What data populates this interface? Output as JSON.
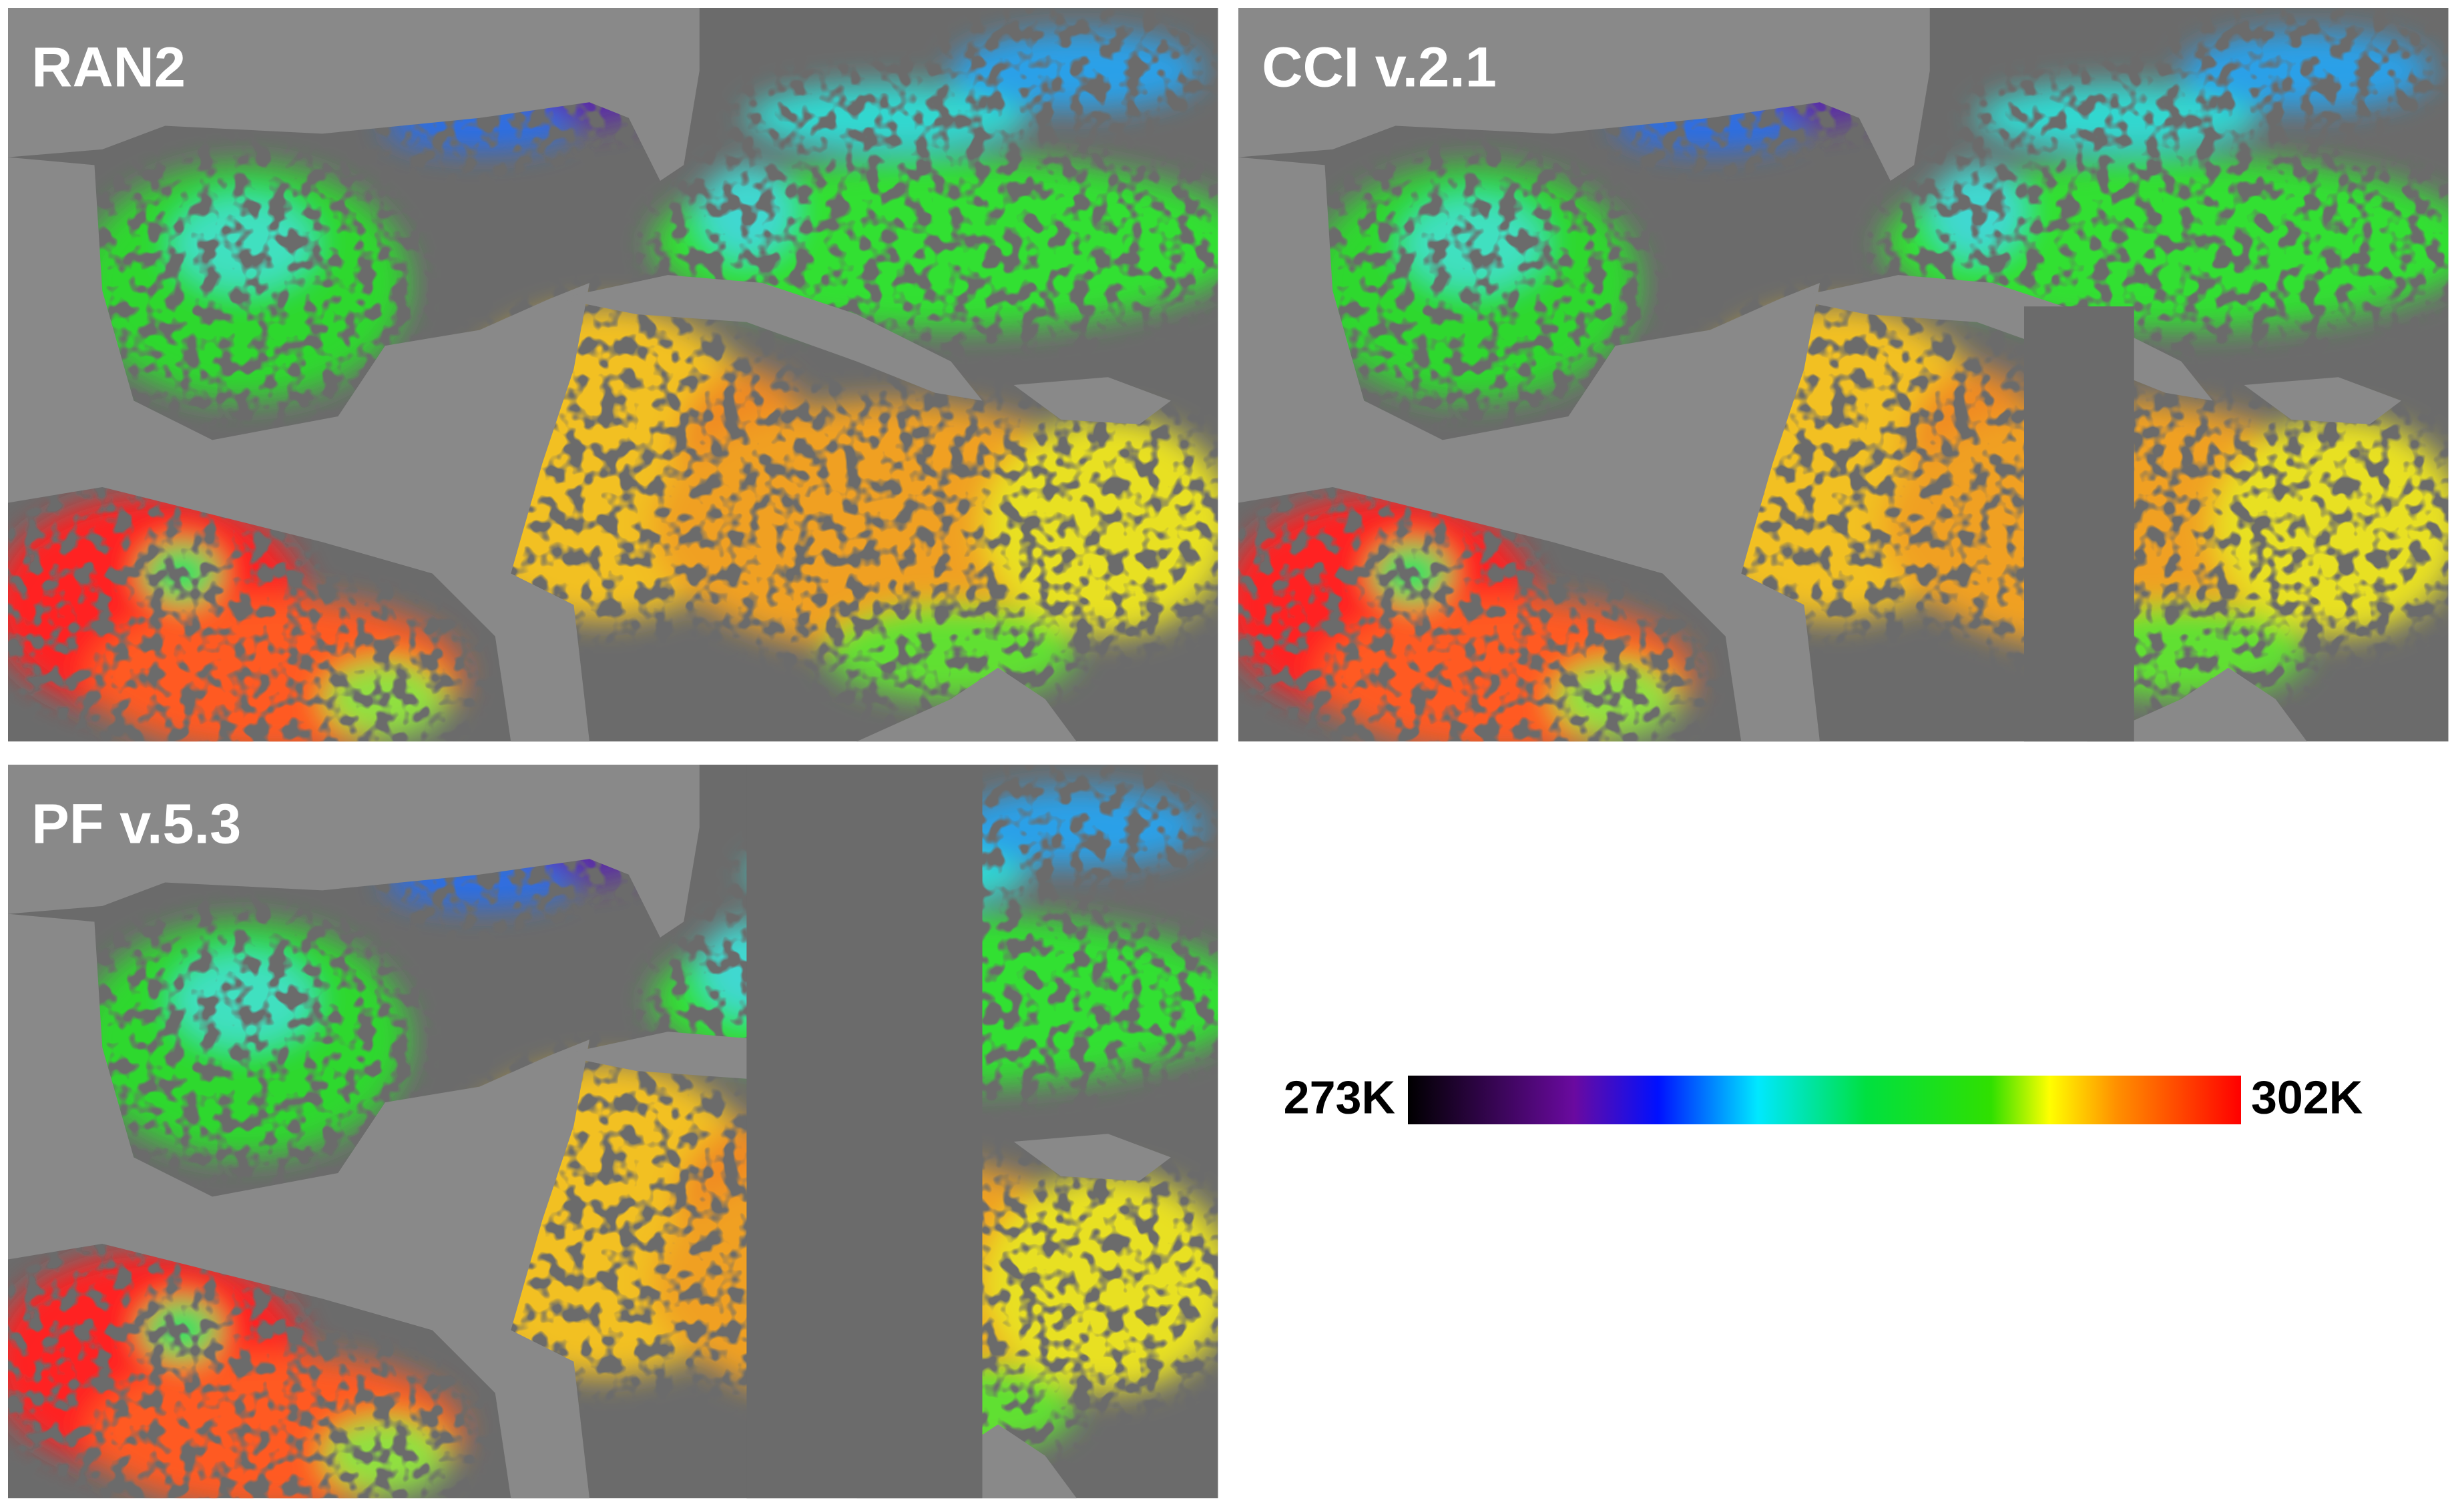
{
  "panels": [
    {
      "title": "RAN2"
    },
    {
      "title": "CCI v.2.1"
    },
    {
      "title": "PF v.5.3"
    }
  ],
  "colorbar": {
    "min": {
      "value": 273,
      "label": "273K"
    },
    "max": {
      "value": 302,
      "label": "302K"
    }
  }
}
